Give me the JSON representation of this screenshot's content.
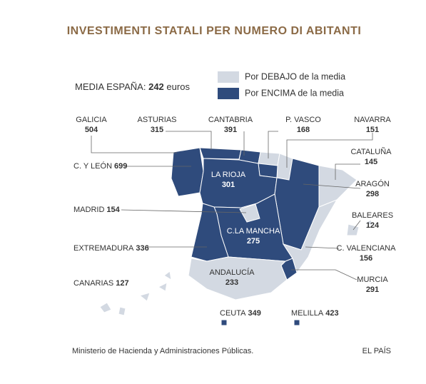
{
  "title": "INVESTIMENTI STATALI PER NUMERO DI ABITANTI",
  "average": {
    "label": "MEDIA ESPAÑA:",
    "value": 242,
    "unit": "euros"
  },
  "legend": [
    {
      "label": "Por DEBAJO de la media",
      "color": "#d3d9e2"
    },
    {
      "label": "Por ENCIMA de la media",
      "color": "#2f4b7c"
    }
  ],
  "regions": [
    {
      "name": "GALICIA",
      "value": 504
    },
    {
      "name": "ASTURIAS",
      "value": 315
    },
    {
      "name": "CANTABRIA",
      "value": 391
    },
    {
      "name": "P. VASCO",
      "value": 168
    },
    {
      "name": "NAVARRA",
      "value": 151
    },
    {
      "name": "CATALUÑA",
      "value": 145
    },
    {
      "name": "C. Y LEÓN",
      "value": 699
    },
    {
      "name": "LA RIOJA",
      "value": 301
    },
    {
      "name": "ARAGÓN",
      "value": 298
    },
    {
      "name": "MADRID",
      "value": 154
    },
    {
      "name": "BALEARES",
      "value": 124
    },
    {
      "name": "C.LA MANCHA",
      "value": 275
    },
    {
      "name": "EXTREMADURA",
      "value": 336
    },
    {
      "name": "C. VALENCIANA",
      "value": 156
    },
    {
      "name": "ANDALUCÍA",
      "value": 233
    },
    {
      "name": "MURCIA",
      "value": 291
    },
    {
      "name": "CANARIAS",
      "value": 127
    },
    {
      "name": "CEUTA",
      "value": 349
    },
    {
      "name": "MELILLA",
      "value": 423
    }
  ],
  "source": "Ministerio de Hacienda y Administraciones Públicas.",
  "credit": "EL PAÍS"
}
